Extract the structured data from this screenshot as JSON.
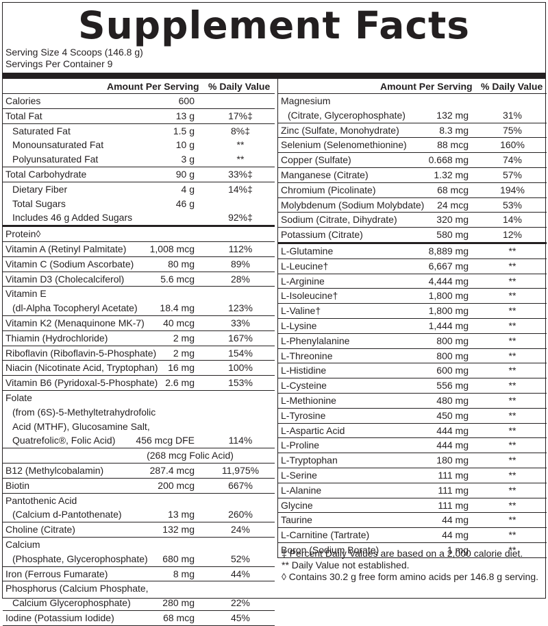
{
  "title": "Supplement Facts",
  "serving_size": "Serving Size 4 Scoops (146.8 g)",
  "servings_per_container": "Servings Per Container 9",
  "headers": {
    "amount": "Amount Per Serving",
    "dv": "% Daily Value"
  },
  "left": [
    {
      "name": "Calories",
      "amount": "600",
      "dv": ""
    },
    {
      "name": "Total Fat",
      "amount": "13 g",
      "dv": "17%‡"
    },
    {
      "name": "Saturated Fat",
      "amount": "1.5 g",
      "dv": "8%‡"
    },
    {
      "name": "Monounsaturated Fat",
      "amount": "10 g",
      "dv": "**"
    },
    {
      "name": "Polyunsaturated Fat",
      "amount": "3 g",
      "dv": "**"
    },
    {
      "name": "Total Carbohydrate",
      "amount": "90 g",
      "dv": "33%‡"
    },
    {
      "name": "Dietary Fiber",
      "amount": "4 g",
      "dv": "14%‡"
    },
    {
      "name": "Total Sugars",
      "amount": "46 g",
      "dv": ""
    },
    {
      "name": "Includes 46 g Added Sugars",
      "amount": "",
      "dv": "92%‡"
    },
    {
      "name": "Protein◊",
      "amount": "",
      "dv": ""
    },
    {
      "name": "Vitamin A (Retinyl Palmitate)",
      "amount": "1,008 mcg",
      "dv": "112%"
    },
    {
      "name": "Vitamin C (Sodium Ascorbate)",
      "amount": "80 mg",
      "dv": "89%"
    },
    {
      "name": "Vitamin D3 (Cholecalciferol)",
      "amount": "5.6 mcg",
      "dv": "28%"
    },
    {
      "name": "Vitamin E",
      "sub": "(dl-Alpha Tocopheryl Acetate)",
      "amount": "18.4 mg",
      "dv": "123%"
    },
    {
      "name": "Vitamin K2 (Menaquinone MK-7)",
      "amount": "40 mcg",
      "dv": "33%"
    },
    {
      "name": "Thiamin (Hydrochloride)",
      "amount": "2 mg",
      "dv": "167%"
    },
    {
      "name": "Riboflavin (Riboflavin-5-Phosphate)",
      "amount": "2 mg",
      "dv": "154%"
    },
    {
      "name": "Niacin (Nicotinate Acid, Tryptophan)",
      "amount": "16 mg",
      "dv": "100%"
    },
    {
      "name": "Vitamin B6 (Pyridoxal-5-Phosphate)",
      "amount": "2.6 mg",
      "dv": "153%"
    },
    {
      "name": "Folate",
      "sub": "(from (6S)-5-Methyltetrahydrofolic",
      "sub2": "Acid (MTHF), Glucosamine Salt,",
      "sub3": "Quatrefolic®, Folic Acid)",
      "amount": "456 mcg DFE",
      "dv": "114%"
    },
    {
      "name": "",
      "amount": "(268 mcg Folic Acid)",
      "dv": "",
      "centered": true
    },
    {
      "name": "B12 (Methylcobalamin)",
      "amount": "287.4 mcg",
      "dv": "11,975%"
    },
    {
      "name": "Biotin",
      "amount": "200 mcg",
      "dv": "667%"
    },
    {
      "name": "Pantothenic Acid",
      "sub": "(Calcium d-Pantothenate)",
      "amount": "13 mg",
      "dv": "260%"
    },
    {
      "name": "Choline (Citrate)",
      "amount": "132 mg",
      "dv": "24%"
    },
    {
      "name": "Calcium",
      "sub": "(Phosphate, Glycerophosphate)",
      "amount": "680 mg",
      "dv": "52%"
    },
    {
      "name": "Iron (Ferrous Fumarate)",
      "amount": "8 mg",
      "dv": "44%"
    },
    {
      "name": "Phosphorus (Calcium Phosphate,",
      "sub": "Calcium Glycerophosphate)",
      "amount": "280 mg",
      "dv": "22%"
    },
    {
      "name": "Iodine (Potassium Iodide)",
      "amount": "68 mcg",
      "dv": "45%"
    }
  ],
  "right": [
    {
      "name": "Magnesium",
      "sub": "(Citrate, Glycerophosphate)",
      "amount": "132 mg",
      "dv": "31%"
    },
    {
      "name": "Zinc (Sulfate, Monohydrate)",
      "amount": "8.3 mg",
      "dv": "75%"
    },
    {
      "name": "Selenium (Selenomethionine)",
      "amount": "88 mcg",
      "dv": "160%"
    },
    {
      "name": "Copper (Sulfate)",
      "amount": "0.668 mg",
      "dv": "74%"
    },
    {
      "name": "Manganese (Citrate)",
      "amount": "1.32 mg",
      "dv": "57%"
    },
    {
      "name": "Chromium (Picolinate)",
      "amount": "68 mcg",
      "dv": "194%"
    },
    {
      "name": "Molybdenum (Sodium Molybdate)",
      "amount": "24 mcg",
      "dv": "53%"
    },
    {
      "name": "Sodium (Citrate, Dihydrate)",
      "amount": "320 mg",
      "dv": "14%"
    },
    {
      "name": "Potassium (Citrate)",
      "amount": "580 mg",
      "dv": "12%"
    },
    {
      "name": "L-Glutamine",
      "amount": "8,889 mg",
      "dv": "**"
    },
    {
      "name": "L-Leucine†",
      "amount": "6,667 mg",
      "dv": "**"
    },
    {
      "name": "L-Arginine",
      "amount": "4,444 mg",
      "dv": "**"
    },
    {
      "name": "L-Isoleucine†",
      "amount": "1,800 mg",
      "dv": "**"
    },
    {
      "name": "L-Valine†",
      "amount": "1,800 mg",
      "dv": "**"
    },
    {
      "name": "L-Lysine",
      "amount": "1,444 mg",
      "dv": "**"
    },
    {
      "name": "L-Phenylalanine",
      "amount": "800 mg",
      "dv": "**"
    },
    {
      "name": "L-Threonine",
      "amount": "800 mg",
      "dv": "**"
    },
    {
      "name": "L-Histidine",
      "amount": "600 mg",
      "dv": "**"
    },
    {
      "name": "L-Cysteine",
      "amount": "556 mg",
      "dv": "**"
    },
    {
      "name": "L-Methionine",
      "amount": "480 mg",
      "dv": "**"
    },
    {
      "name": "L-Tyrosine",
      "amount": "450 mg",
      "dv": "**"
    },
    {
      "name": "L-Aspartic Acid",
      "amount": "444 mg",
      "dv": "**"
    },
    {
      "name": "L-Proline",
      "amount": "444 mg",
      "dv": "**"
    },
    {
      "name": "L-Tryptophan",
      "amount": "180 mg",
      "dv": "**"
    },
    {
      "name": "L-Serine",
      "amount": "111 mg",
      "dv": "**"
    },
    {
      "name": "L-Alanine",
      "amount": "111 mg",
      "dv": "**"
    },
    {
      "name": "Glycine",
      "amount": "111 mg",
      "dv": "**"
    },
    {
      "name": "Taurine",
      "amount": "44 mg",
      "dv": "**"
    },
    {
      "name": "L-Carnitine (Tartrate)",
      "amount": "44 mg",
      "dv": "**"
    },
    {
      "name": "Boron (Sodium Borate)",
      "amount": "1 mg",
      "dv": "**"
    }
  ],
  "footnotes": [
    "‡ Percent Daily Values are based on a 2,000 calorie diet.",
    "** Daily Value not established.",
    "◊ Contains 30.2 g free form amino acids per 146.8 g serving."
  ]
}
